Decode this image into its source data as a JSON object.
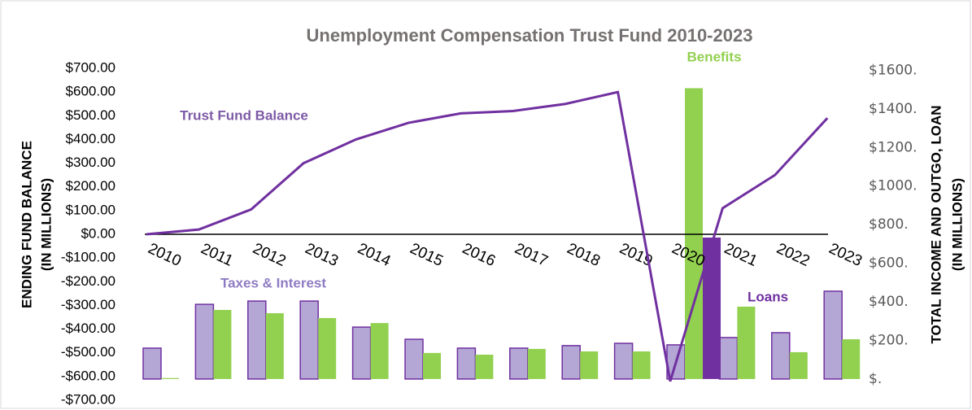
{
  "chart_data": {
    "type": "bar-line",
    "title": "Unemployment Compensation Trust Fund 2010-2023",
    "y_label": [
      "ENDING FUND BALANCE",
      "(IN MILLIONS)"
    ],
    "y2_label": [
      "TOTAL INCOME AND OUTGO, LOAN",
      "(IN MILLIONS)"
    ],
    "categories": [
      "2010",
      "2011",
      "2012",
      "2013",
      "2014",
      "2015",
      "2016",
      "2017",
      "2018",
      "2019",
      "2020",
      "2021",
      "2022",
      "2023"
    ],
    "series": [
      {
        "name": "Trust Fund Balance",
        "kind": "line",
        "axis": "y",
        "color": "#7030a0",
        "values": [
          0,
          20,
          105,
          300,
          400,
          470,
          510,
          520,
          550,
          600,
          -620,
          110,
          250,
          490
        ]
      },
      {
        "name": "Taxes & Interest",
        "kind": "bar",
        "axis": "y2",
        "color": "#b4a7d6",
        "values": [
          160,
          387,
          404,
          404,
          269,
          206,
          160,
          160,
          173,
          185,
          177,
          215,
          240,
          455
        ]
      },
      {
        "name": "Benefits",
        "kind": "bar",
        "axis": "y2",
        "color": "#92d050",
        "values": [
          5,
          358,
          341,
          316,
          290,
          135,
          126,
          156,
          143,
          143,
          1507,
          375,
          139,
          206
        ]
      },
      {
        "name": "Loans",
        "kind": "bar",
        "axis": "y2",
        "color": "#7030a0",
        "values": [
          null,
          null,
          null,
          null,
          null,
          null,
          null,
          null,
          null,
          null,
          733,
          null,
          null,
          null
        ]
      }
    ],
    "ylim": [
      -700,
      700
    ],
    "yticks": [
      {
        "value": 700,
        "label": "$700.00"
      },
      {
        "value": 600,
        "label": "$600.00"
      },
      {
        "value": 500,
        "label": "$500.00"
      },
      {
        "value": 400,
        "label": "$400.00"
      },
      {
        "value": 300,
        "label": "$300.00"
      },
      {
        "value": 200,
        "label": "$200.00"
      },
      {
        "value": 100,
        "label": "$100.00"
      },
      {
        "value": 0,
        "label": "$0.00"
      },
      {
        "value": -100,
        "label": "-$100.00"
      },
      {
        "value": -200,
        "label": "-$200.00"
      },
      {
        "value": -300,
        "label": "-$300.00"
      },
      {
        "value": -400,
        "label": "-$400.00"
      },
      {
        "value": -500,
        "label": "-$500.00"
      },
      {
        "value": -600,
        "label": "-$600.00"
      },
      {
        "value": -700,
        "label": "-$700.00"
      }
    ],
    "y2lim": [
      -110,
      1610
    ],
    "y2ticks": [
      {
        "value": 1600,
        "label": "$1600."
      },
      {
        "value": 1400,
        "label": "$1400."
      },
      {
        "value": 1200,
        "label": "$1200."
      },
      {
        "value": 1000,
        "label": "$1000."
      },
      {
        "value": 800,
        "label": "$800."
      },
      {
        "value": 600,
        "label": "$600."
      },
      {
        "value": 400,
        "label": "$400."
      },
      {
        "value": 200,
        "label": "$200."
      },
      {
        "value": 0,
        "label": "$."
      }
    ]
  }
}
